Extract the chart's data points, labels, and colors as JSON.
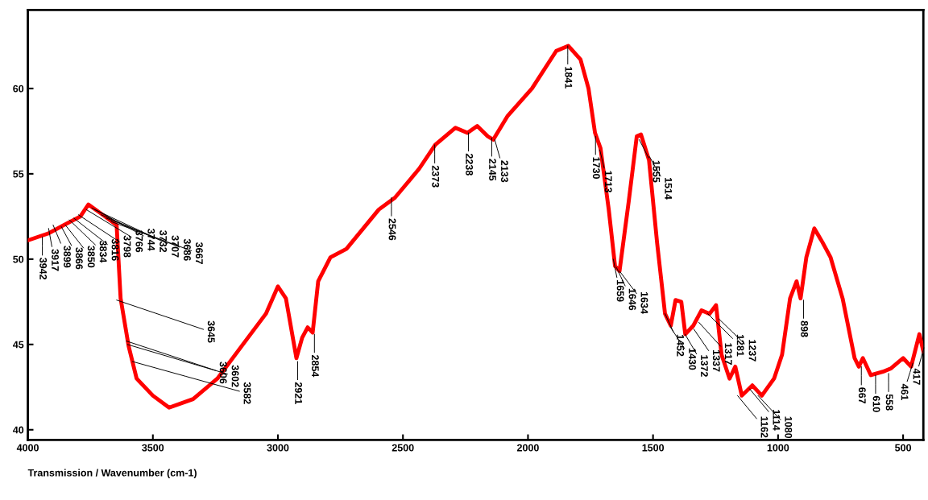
{
  "chart_data": {
    "type": "line",
    "xlabel": "Transmission / Wavenumber (cm-1)",
    "xlim": [
      4000,
      419
    ],
    "xticks": [
      4000,
      3500,
      3000,
      2500,
      2000,
      1500,
      1000,
      500
    ],
    "ylim": [
      39.4,
      64.6
    ],
    "yticks": [
      40,
      45,
      50,
      55,
      60
    ],
    "grid": false,
    "legend": false,
    "marker": "none",
    "line_style": "solid",
    "series": [
      {
        "color": "#ff0000",
        "x": [
          4000,
          3919,
          3855,
          3790,
          3758,
          3710,
          3645,
          3629,
          3597,
          3565,
          3500,
          3435,
          3339,
          3242,
          3145,
          3048,
          3000,
          2968,
          2926,
          2903,
          2881,
          2861,
          2839,
          2790,
          2726,
          2597,
          2532,
          2435,
          2371,
          2290,
          2242,
          2203,
          2161,
          2139,
          2081,
          1984,
          1887,
          1839,
          1790,
          1758,
          1732,
          1710,
          1677,
          1652,
          1634,
          1597,
          1565,
          1548,
          1516,
          1484,
          1452,
          1429,
          1410,
          1387,
          1371,
          1339,
          1306,
          1274,
          1248,
          1226,
          1194,
          1171,
          1145,
          1103,
          1065,
          1016,
          984,
          952,
          926,
          910,
          887,
          855,
          823,
          790,
          742,
          694,
          677,
          661,
          629,
          581,
          548,
          500,
          468,
          435,
          419
        ],
        "values": [
          51.1,
          51.5,
          52.0,
          52.5,
          53.2,
          52.7,
          52.0,
          47.7,
          44.9,
          43.0,
          42.0,
          41.3,
          41.8,
          43.0,
          44.9,
          46.8,
          48.4,
          47.7,
          44.2,
          45.4,
          46.0,
          45.7,
          48.7,
          50.1,
          50.6,
          52.9,
          53.6,
          55.3,
          56.7,
          57.7,
          57.4,
          57.8,
          57.2,
          57.0,
          58.4,
          60.0,
          62.2,
          62.5,
          61.7,
          60.0,
          57.4,
          56.5,
          52.9,
          49.6,
          49.3,
          53.4,
          57.2,
          57.3,
          55.8,
          51.0,
          46.8,
          46.1,
          47.6,
          47.5,
          45.6,
          46.1,
          47.0,
          46.8,
          47.3,
          44.4,
          43.0,
          43.7,
          42.0,
          42.6,
          42.0,
          43.0,
          44.4,
          47.7,
          48.7,
          47.7,
          50.1,
          51.8,
          51.0,
          50.1,
          47.7,
          44.2,
          43.7,
          44.2,
          43.2,
          43.4,
          43.6,
          44.2,
          43.7,
          45.6,
          44.6
        ]
      }
    ],
    "annotations": [
      {
        "text": "3942",
        "x": 3942,
        "y": 51.3
      },
      {
        "text": "3917",
        "x": 3917,
        "y": 51.8
      },
      {
        "text": "3899",
        "x": 3899,
        "y": 52.0
      },
      {
        "text": "3866",
        "x": 3866,
        "y": 51.9
      },
      {
        "text": "3850",
        "x": 3850,
        "y": 52.0
      },
      {
        "text": "3834",
        "x": 3834,
        "y": 52.3
      },
      {
        "text": "3816",
        "x": 3816,
        "y": 52.4
      },
      {
        "text": "3798",
        "x": 3798,
        "y": 52.6
      },
      {
        "text": "3766",
        "x": 3766,
        "y": 52.9
      },
      {
        "text": "3744",
        "x": 3744,
        "y": 53.0
      },
      {
        "text": "3732",
        "x": 3732,
        "y": 52.9
      },
      {
        "text": "3707",
        "x": 3707,
        "y": 52.6
      },
      {
        "text": "3686",
        "x": 3686,
        "y": 52.4
      },
      {
        "text": "3667",
        "x": 3667,
        "y": 52.2
      },
      {
        "text": "3645",
        "x": 3645,
        "y": 47.6
      },
      {
        "text": "3606",
        "x": 3606,
        "y": 45.2
      },
      {
        "text": "3602",
        "x": 3602,
        "y": 45.0
      },
      {
        "text": "3582",
        "x": 3582,
        "y": 44.0
      },
      {
        "text": "2921",
        "x": 2921,
        "y": 44.0
      },
      {
        "text": "2854",
        "x": 2854,
        "y": 45.6
      },
      {
        "text": "2546",
        "x": 2546,
        "y": 53.6
      },
      {
        "text": "2373",
        "x": 2373,
        "y": 56.7
      },
      {
        "text": "2238",
        "x": 2238,
        "y": 57.4
      },
      {
        "text": "2145",
        "x": 2145,
        "y": 57.1
      },
      {
        "text": "2133",
        "x": 2133,
        "y": 57.0
      },
      {
        "text": "1841",
        "x": 1841,
        "y": 62.5
      },
      {
        "text": "1730",
        "x": 1730,
        "y": 57.2
      },
      {
        "text": "1713",
        "x": 1713,
        "y": 56.4
      },
      {
        "text": "1659",
        "x": 1659,
        "y": 50.0
      },
      {
        "text": "1646",
        "x": 1646,
        "y": 49.5
      },
      {
        "text": "1634",
        "x": 1634,
        "y": 49.3
      },
      {
        "text": "1555",
        "x": 1555,
        "y": 57.0
      },
      {
        "text": "1514",
        "x": 1514,
        "y": 56.0
      },
      {
        "text": "1452",
        "x": 1452,
        "y": 46.8
      },
      {
        "text": "1430",
        "x": 1430,
        "y": 46.0
      },
      {
        "text": "1372",
        "x": 1372,
        "y": 45.6
      },
      {
        "text": "1337",
        "x": 1337,
        "y": 45.9
      },
      {
        "text": "1317",
        "x": 1317,
        "y": 46.3
      },
      {
        "text": "1281",
        "x": 1281,
        "y": 46.8
      },
      {
        "text": "1237",
        "x": 1237,
        "y": 46.5
      },
      {
        "text": "1162",
        "x": 1162,
        "y": 42.0
      },
      {
        "text": "1114",
        "x": 1114,
        "y": 42.4
      },
      {
        "text": "1080",
        "x": 1080,
        "y": 42.0
      },
      {
        "text": "898",
        "x": 898,
        "y": 47.6
      },
      {
        "text": "667",
        "x": 667,
        "y": 43.7
      },
      {
        "text": "610",
        "x": 610,
        "y": 43.2
      },
      {
        "text": "558",
        "x": 558,
        "y": 43.3
      },
      {
        "text": "461",
        "x": 461,
        "y": 43.9
      },
      {
        "text": "417",
        "x": 417,
        "y": 44.8
      }
    ]
  }
}
